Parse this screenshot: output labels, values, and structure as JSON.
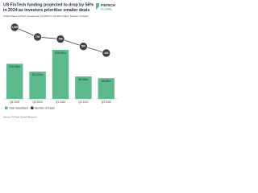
{
  "chart_data": {
    "type": "bar-line",
    "title": [
      "US FinTech funding projected to drop by 56%",
      "in 2024 as investors prioritise smaller deals"
    ],
    "subtitle": "United States FinTech Investments, Q3 2023 to Q4 2024 (Value, Number of Deals)",
    "logo": [
      "FINTECH",
      "GLOBAL"
    ],
    "source": "Source: FinTech Global Research",
    "categories": [
      "Q3 2023",
      "Q4 2023",
      "Q1 2024",
      "Q2 2024",
      "Q3 2024"
    ],
    "series": [
      {
        "name": "Total Investment",
        "color": "#5dba8c",
        "values": [
          15.03,
          11.67,
          20.95,
          9.58,
          8.88
        ],
        "value_labels": [
          "$15.03bn",
          "$11.67bn",
          "$20.95bn",
          "$9.58bn",
          "$8.88bn"
        ]
      },
      {
        "name": "Number of Deals",
        "color": "#3a3f44",
        "values": [
          1005,
          795,
          750,
          590,
          444
        ],
        "value_labels": [
          "1,005",
          "795",
          "750",
          "590",
          "444"
        ]
      }
    ]
  }
}
